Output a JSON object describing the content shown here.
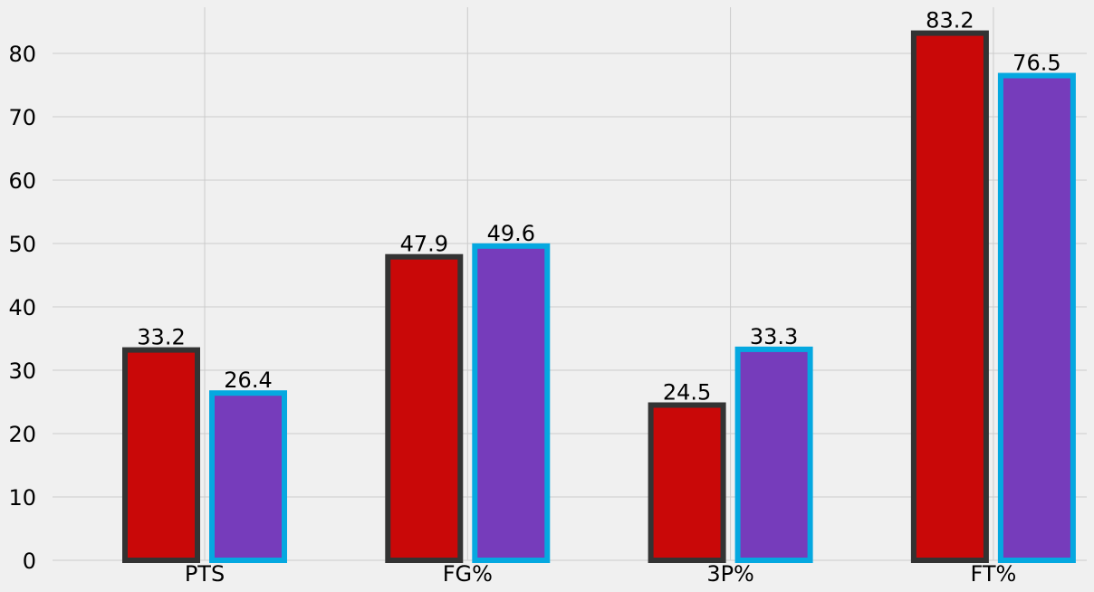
{
  "chart_data": {
    "type": "bar",
    "categories": [
      "PTS",
      "FG%",
      "3P%",
      "FT%"
    ],
    "series": [
      {
        "values": [
          33.2,
          47.9,
          24.5,
          83.2
        ],
        "fill": "#c90808",
        "edge": "#333333"
      },
      {
        "values": [
          26.4,
          49.6,
          33.3,
          76.5
        ],
        "fill": "#763cbb",
        "edge": "#05a8e0"
      }
    ],
    "data_labels": [
      [
        "33.2",
        "47.9",
        "24.5",
        "83.2"
      ],
      [
        "26.4",
        "49.6",
        "33.3",
        "76.5"
      ]
    ],
    "yticks": [
      "0",
      "10",
      "20",
      "30",
      "40",
      "50",
      "60",
      "70",
      "80"
    ],
    "ylim": [
      0,
      87
    ],
    "grid": true,
    "background": "#f0f0f0",
    "grid_color": "#cbcbcb"
  }
}
